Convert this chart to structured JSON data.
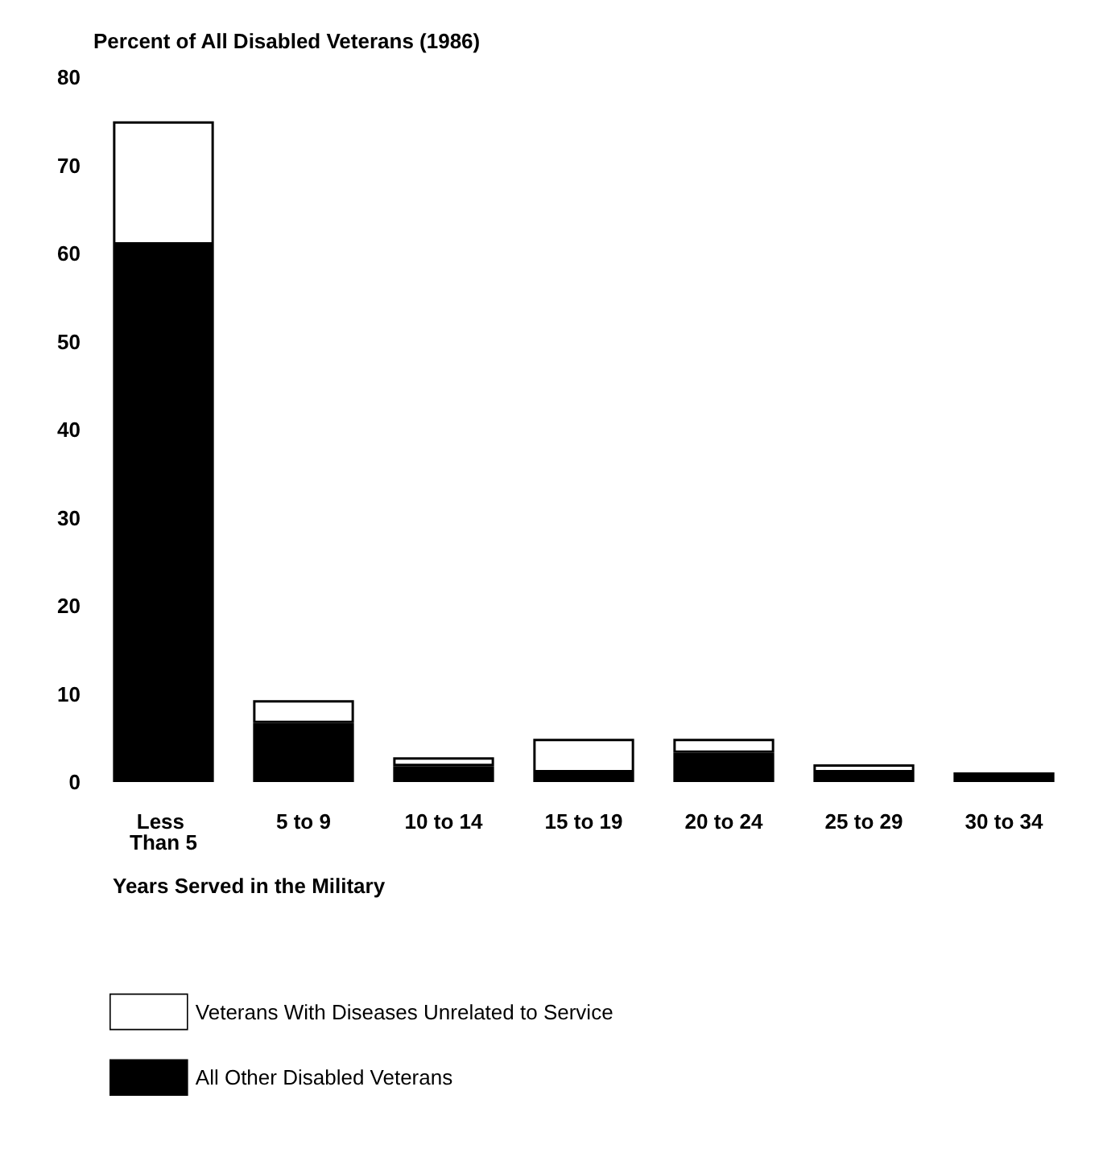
{
  "chart_data": {
    "type": "bar",
    "stacked": true,
    "ylabel": "Percent of All Disabled Veterans (1986)",
    "xlabel": "Years Served in the Military",
    "categories": [
      "Less Than 5",
      "5 to 9",
      "10 to 14",
      "15 to 19",
      "20 to 24",
      "25 to 29",
      "30 to 34"
    ],
    "series": [
      {
        "name": "All Other Disabled Veterans",
        "color": "#000000",
        "values": [
          61,
          6.7,
          1.8,
          1.1,
          3.3,
          1.1,
          1.1
        ]
      },
      {
        "name": "Veterans With Diseases Unrelated to Service",
        "color": "#ffffff",
        "values": [
          14,
          2.6,
          1.0,
          3.8,
          1.6,
          0.9,
          0
        ]
      }
    ],
    "ylim": [
      0,
      80
    ],
    "yticks": [
      0,
      10,
      20,
      30,
      40,
      50,
      60,
      70,
      80
    ],
    "grid": false,
    "legend": "bottom"
  }
}
